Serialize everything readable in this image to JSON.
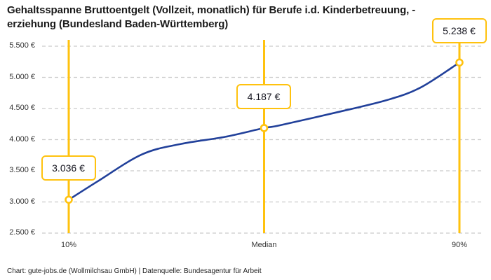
{
  "header": {
    "title": "Gehaltsspanne Bruttoentgelt (Vollzeit, monatlich) für Berufe i.d. Kinderbetreuung, -erziehung (Bundesland Baden-Württemberg)"
  },
  "footer": {
    "credit": "Chart: gute-jobs.de (Wollmilchsau GmbH) | Datenquelle: Bundesagentur für Arbeit"
  },
  "chart_data": {
    "type": "line",
    "title": "Gehaltsspanne Bruttoentgelt (Vollzeit, monatlich) für Berufe i.d. Kinderbetreuung, -erziehung (Bundesland Baden-Württemberg)",
    "grid": true,
    "legend_position": "none",
    "colors": {
      "accent": "#FFC20E",
      "line": "#21409A",
      "grid": "#CBCBCB",
      "tick_text": "#333333"
    },
    "y_axis": {
      "min": 2500,
      "max": 5500,
      "step": 500,
      "tick_labels": [
        "5.500 €",
        "5.000 €",
        "4.500 €",
        "4.000 €",
        "3.500 €",
        "3.000 €",
        "2.500 €"
      ]
    },
    "x_axis": {
      "range_percent": [
        10,
        90
      ],
      "ticks": [
        {
          "percent": 10,
          "label": "10%"
        },
        {
          "percent": 50,
          "label": "Median"
        },
        {
          "percent": 90,
          "label": "90%"
        }
      ]
    },
    "series": [
      {
        "name": "Bruttoentgelt (Vollzeit, monatlich)",
        "points": [
          {
            "percent": 10,
            "value": 3036
          },
          {
            "percent": 16,
            "value": 3335
          },
          {
            "percent": 25,
            "value": 3763
          },
          {
            "percent": 33,
            "value": 3932
          },
          {
            "percent": 42,
            "value": 4045
          },
          {
            "percent": 50,
            "value": 4187
          },
          {
            "percent": 53,
            "value": 4226
          },
          {
            "percent": 65,
            "value": 4440
          },
          {
            "percent": 75,
            "value": 4632
          },
          {
            "percent": 82,
            "value": 4835
          },
          {
            "percent": 90,
            "value": 5238
          }
        ]
      }
    ],
    "key_points": [
      {
        "percent": 10,
        "value": 3036,
        "label": "3.036 €"
      },
      {
        "percent": 50,
        "value": 4187,
        "label": "4.187 €"
      },
      {
        "percent": 90,
        "value": 5238,
        "label": "5.238 €"
      }
    ]
  }
}
